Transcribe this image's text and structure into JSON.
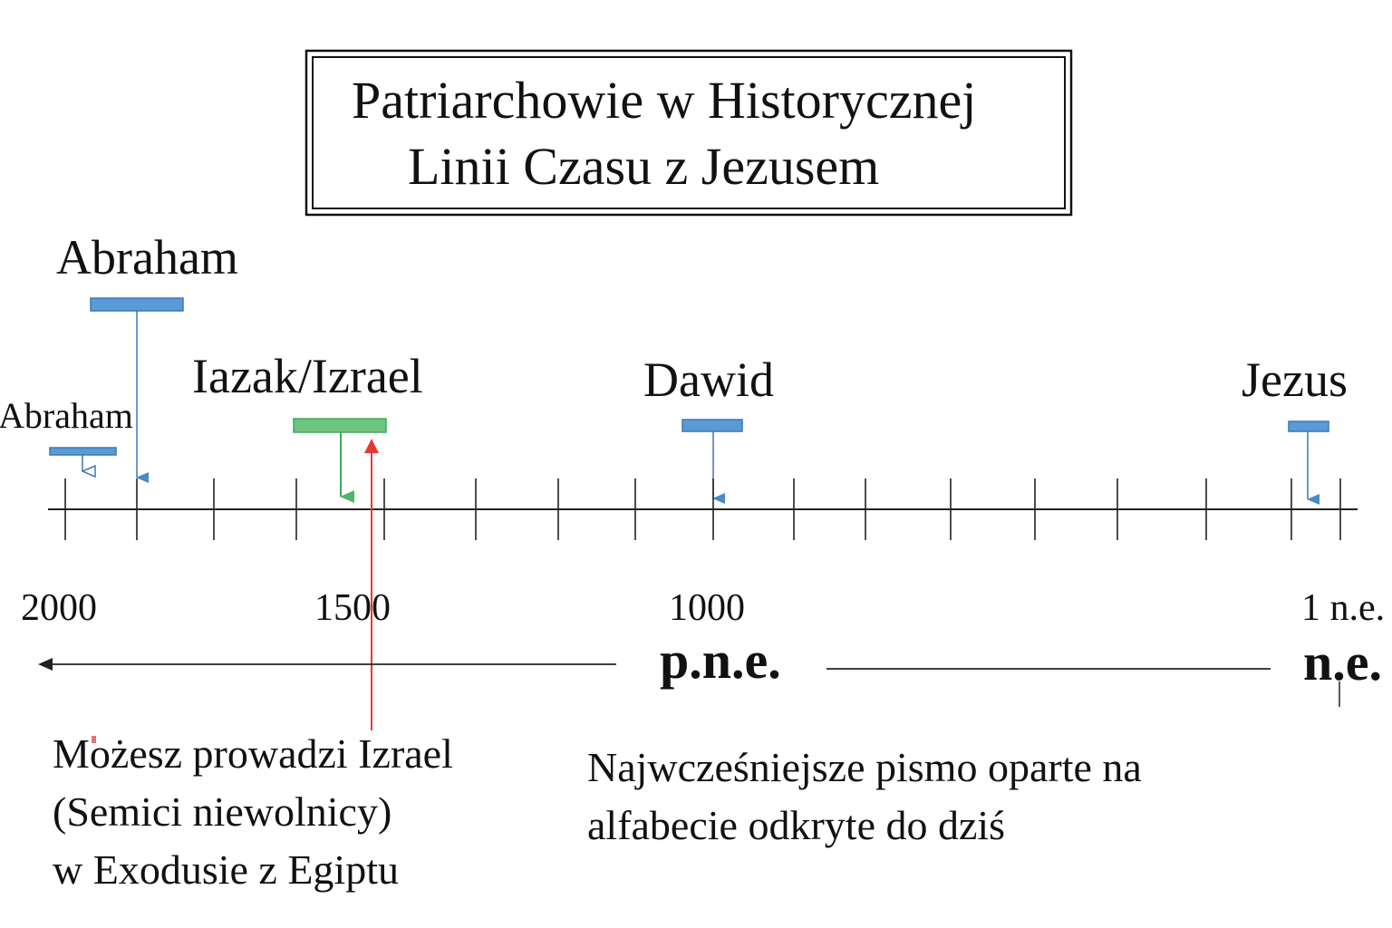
{
  "title": {
    "line1": "Patriarchowie w Historycznej",
    "line2": "Linii Czasu z Jezusem"
  },
  "persons": {
    "abraham_upper": "Abraham",
    "abraham_lower": "Abraham",
    "isaac": "Iazak/Izrael",
    "david": "Dawid",
    "jesus": "Jezus"
  },
  "years": [
    "2000",
    "1500",
    "1000",
    "1 n.e."
  ],
  "eras": {
    "bc": "p.n.e.",
    "ad": "n.e."
  },
  "notes": {
    "moses": [
      "Możesz prowadzi Izrael",
      "(Semici niewolnicy)",
      "w Exodusie z Egiptu"
    ],
    "alphabet": [
      "Najwcześniejsze pismo oparte na",
      "alfabecie odkryte do dziś"
    ]
  },
  "colors": {
    "blue": "#5b9bd5",
    "blue_dark": "#3b78b5",
    "green": "#6cc57f",
    "green_dark": "#3fa85a",
    "red": "#e53935",
    "line": "#222222"
  }
}
